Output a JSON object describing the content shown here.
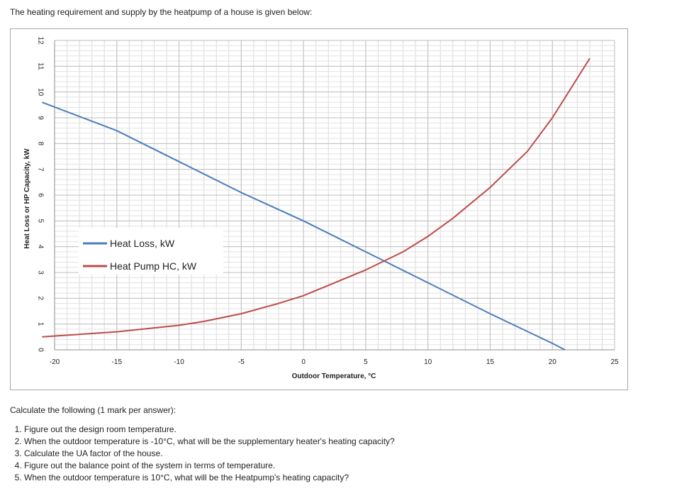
{
  "intro_text": "The heating requirement and supply by the heatpump of a house is given below:",
  "chart_data": {
    "type": "line",
    "xlabel": "Outdoor Temperature, °C",
    "ylabel": "Heat Loss or HP Capacity, kW",
    "xlim": [
      -20,
      25
    ],
    "ylim": [
      0,
      12
    ],
    "x_ticks": [
      "-20",
      "-15",
      "-10",
      "-5",
      "0",
      "5",
      "10",
      "15",
      "20",
      "25"
    ],
    "y_ticks": [
      "0",
      "1",
      "2",
      "3",
      "4",
      "5",
      "6",
      "7",
      "8",
      "9",
      "10",
      "11",
      "12"
    ],
    "grid": true,
    "legend_position": "left-middle",
    "series": [
      {
        "name": "Heat Loss, kW",
        "color": "#4a7ebb",
        "x": [
          -21,
          -15,
          -10,
          -5,
          0,
          5,
          10,
          15,
          20,
          21
        ],
        "y": [
          9.6,
          8.5,
          7.3,
          6.1,
          5.0,
          3.8,
          2.6,
          1.4,
          0.25,
          0.0
        ]
      },
      {
        "name": "Heat Pump HC, kW",
        "color": "#be4b48",
        "x": [
          -21,
          -18,
          -15,
          -12,
          -10,
          -8,
          -5,
          -2,
          0,
          2,
          5,
          8,
          10,
          12,
          15,
          18,
          20,
          23
        ],
        "y": [
          0.5,
          0.6,
          0.7,
          0.85,
          0.95,
          1.1,
          1.4,
          1.8,
          2.1,
          2.5,
          3.1,
          3.8,
          4.4,
          5.1,
          6.3,
          7.7,
          9.0,
          11.3
        ]
      }
    ]
  },
  "questions_intro": "Calculate the following (1 mark per answer):",
  "questions": [
    "Figure out the design room temperature.",
    "When the outdoor temperature is -10°C, what will be the supplementary heater's heating capacity?",
    "Calculate the UA factor of the house.",
    "Figure out the balance point of the system in terms of temperature.",
    "When the outdoor temperature is 10°C, what will be the Heatpump's heating capacity?"
  ]
}
